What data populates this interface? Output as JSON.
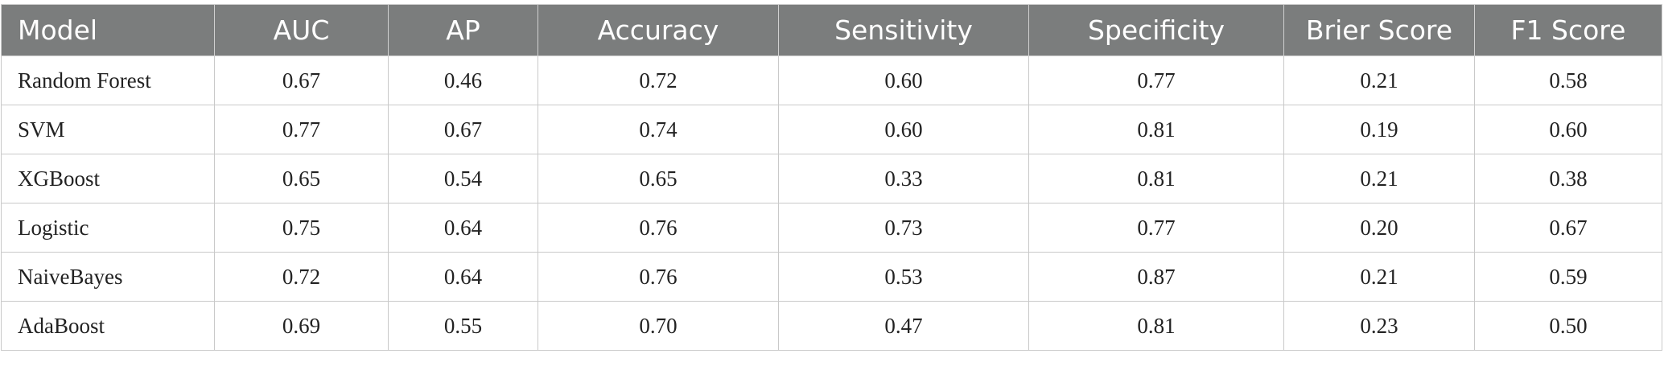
{
  "table": {
    "headers": [
      "Model",
      "AUC",
      "AP",
      "Accuracy",
      "Sensitivity",
      "Specificity",
      "Brier Score",
      "F1 Score"
    ],
    "rows": [
      [
        "Random Forest",
        "0.67",
        "0.46",
        "0.72",
        "0.60",
        "0.77",
        "0.21",
        "0.58"
      ],
      [
        "SVM",
        "0.77",
        "0.67",
        "0.74",
        "0.60",
        "0.81",
        "0.19",
        "0.60"
      ],
      [
        "XGBoost",
        "0.65",
        "0.54",
        "0.65",
        "0.33",
        "0.81",
        "0.21",
        "0.38"
      ],
      [
        "Logistic",
        "0.75",
        "0.64",
        "0.76",
        "0.73",
        "0.77",
        "0.20",
        "0.67"
      ],
      [
        "NaiveBayes",
        "0.72",
        "0.64",
        "0.76",
        "0.53",
        "0.87",
        "0.21",
        "0.59"
      ],
      [
        "AdaBoost",
        "0.69",
        "0.55",
        "0.70",
        "0.47",
        "0.81",
        "0.23",
        "0.50"
      ]
    ]
  },
  "colors": {
    "header_background": "#7b7d7d",
    "header_text": "#ffffff",
    "border": "#c9c9c9",
    "body_text": "#222222"
  }
}
